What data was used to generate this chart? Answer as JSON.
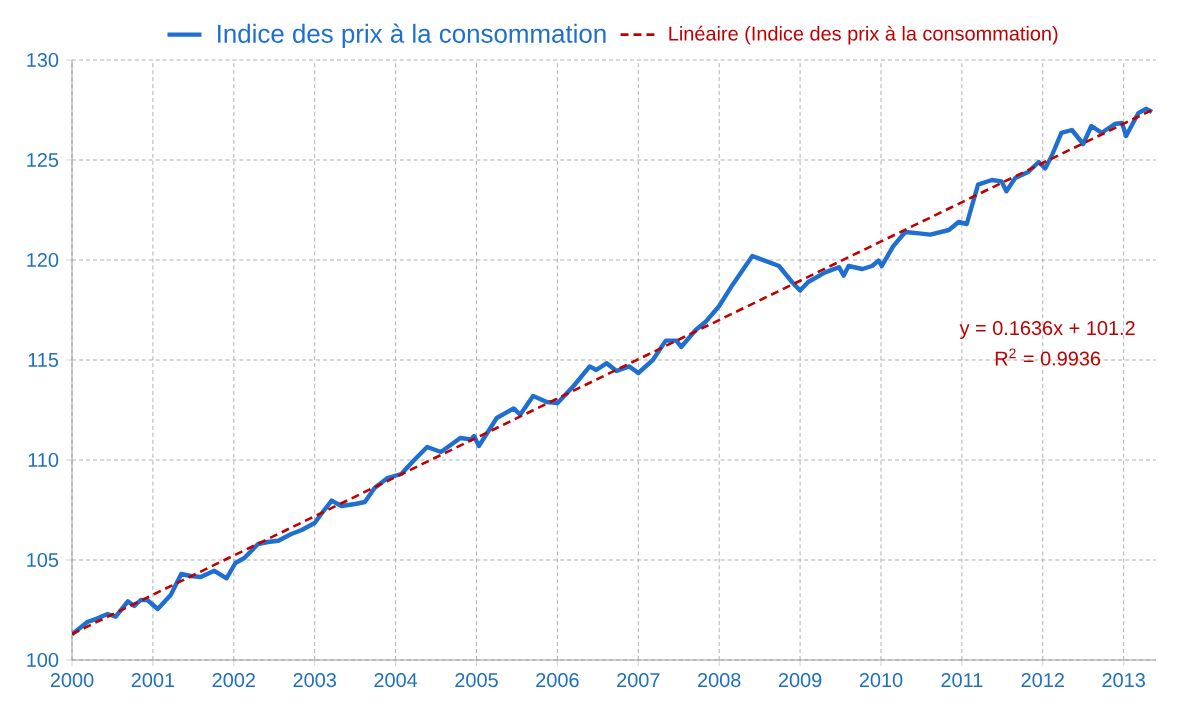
{
  "chart_data": {
    "type": "line",
    "xlim": [
      2000,
      2013.4
    ],
    "ylim": [
      100,
      130
    ],
    "xticks": [
      2000,
      2001,
      2002,
      2003,
      2004,
      2005,
      2006,
      2007,
      2008,
      2009,
      2010,
      2011,
      2012,
      2013
    ],
    "yticks": [
      100,
      105,
      110,
      115,
      120,
      125,
      130
    ],
    "grid": true,
    "legend": "top",
    "marker": "none",
    "series": [
      {
        "name": "Indice des prix à la consommation",
        "color": "#1f6fd0",
        "line_style": "solid",
        "x": [
          2000.0,
          2000.19,
          2000.31,
          2000.44,
          2000.54,
          2000.69,
          2000.77,
          2000.85,
          2000.93,
          2001.06,
          2001.22,
          2001.35,
          2001.47,
          2001.59,
          2001.76,
          2001.91,
          2002.02,
          2002.13,
          2002.3,
          2002.42,
          2002.55,
          2002.71,
          2002.84,
          2003.0,
          2003.08,
          2003.21,
          2003.33,
          2003.5,
          2003.62,
          2003.74,
          2003.9,
          2004.07,
          2004.23,
          2004.39,
          2004.56,
          2004.8,
          2004.93,
          2004.97,
          2005.03,
          2005.25,
          2005.46,
          2005.54,
          2005.7,
          2005.87,
          2006.0,
          2006.2,
          2006.4,
          2006.48,
          2006.61,
          2006.73,
          2006.89,
          2007.0,
          2007.18,
          2007.34,
          2007.47,
          2007.53,
          2007.71,
          2007.84,
          2008.0,
          2008.16,
          2008.41,
          2008.74,
          2008.9,
          2009.0,
          2009.1,
          2009.31,
          2009.48,
          2009.54,
          2009.6,
          2009.77,
          2009.89,
          2009.97,
          2010.01,
          2010.15,
          2010.3,
          2010.47,
          2010.61,
          2010.84,
          2010.96,
          2011.06,
          2011.2,
          2011.37,
          2011.49,
          2011.55,
          2011.66,
          2011.82,
          2011.95,
          2012.03,
          2012.11,
          2012.23,
          2012.36,
          2012.5,
          2012.6,
          2012.73,
          2012.89,
          2012.98,
          2013.03,
          2013.18,
          2013.28,
          2013.35
        ],
        "values": [
          101.28,
          101.9,
          102.07,
          102.3,
          102.17,
          102.93,
          102.7,
          103.0,
          103.0,
          102.55,
          103.25,
          104.3,
          104.2,
          104.15,
          104.46,
          104.08,
          104.85,
          105.1,
          105.8,
          105.9,
          105.96,
          106.3,
          106.5,
          106.85,
          107.3,
          107.97,
          107.7,
          107.8,
          107.9,
          108.6,
          109.1,
          109.3,
          110.0,
          110.65,
          110.4,
          111.1,
          111.03,
          111.2,
          110.7,
          112.1,
          112.58,
          112.26,
          113.2,
          112.9,
          112.84,
          113.7,
          114.68,
          114.5,
          114.84,
          114.45,
          114.68,
          114.35,
          115.0,
          115.97,
          115.97,
          115.65,
          116.5,
          116.94,
          117.7,
          118.73,
          120.2,
          119.7,
          118.9,
          118.47,
          118.9,
          119.38,
          119.64,
          119.22,
          119.7,
          119.55,
          119.7,
          119.97,
          119.7,
          120.68,
          121.4,
          121.33,
          121.27,
          121.5,
          121.9,
          121.8,
          123.77,
          124.0,
          123.93,
          123.44,
          124.1,
          124.4,
          124.9,
          124.58,
          125.2,
          126.36,
          126.5,
          125.8,
          126.7,
          126.36,
          126.8,
          126.85,
          126.2,
          127.34,
          127.56,
          127.4
        ]
      },
      {
        "name": "Linéaire (Indice des prix à la consommation)",
        "color": "#c00000",
        "line_style": "dashed",
        "x": [
          2000.0,
          2013.35
        ],
        "values": [
          101.3,
          127.5
        ]
      }
    ],
    "annotations": [
      "y = 0.1636x + 101.2",
      "R$^{2}$ = 0.9936"
    ]
  }
}
